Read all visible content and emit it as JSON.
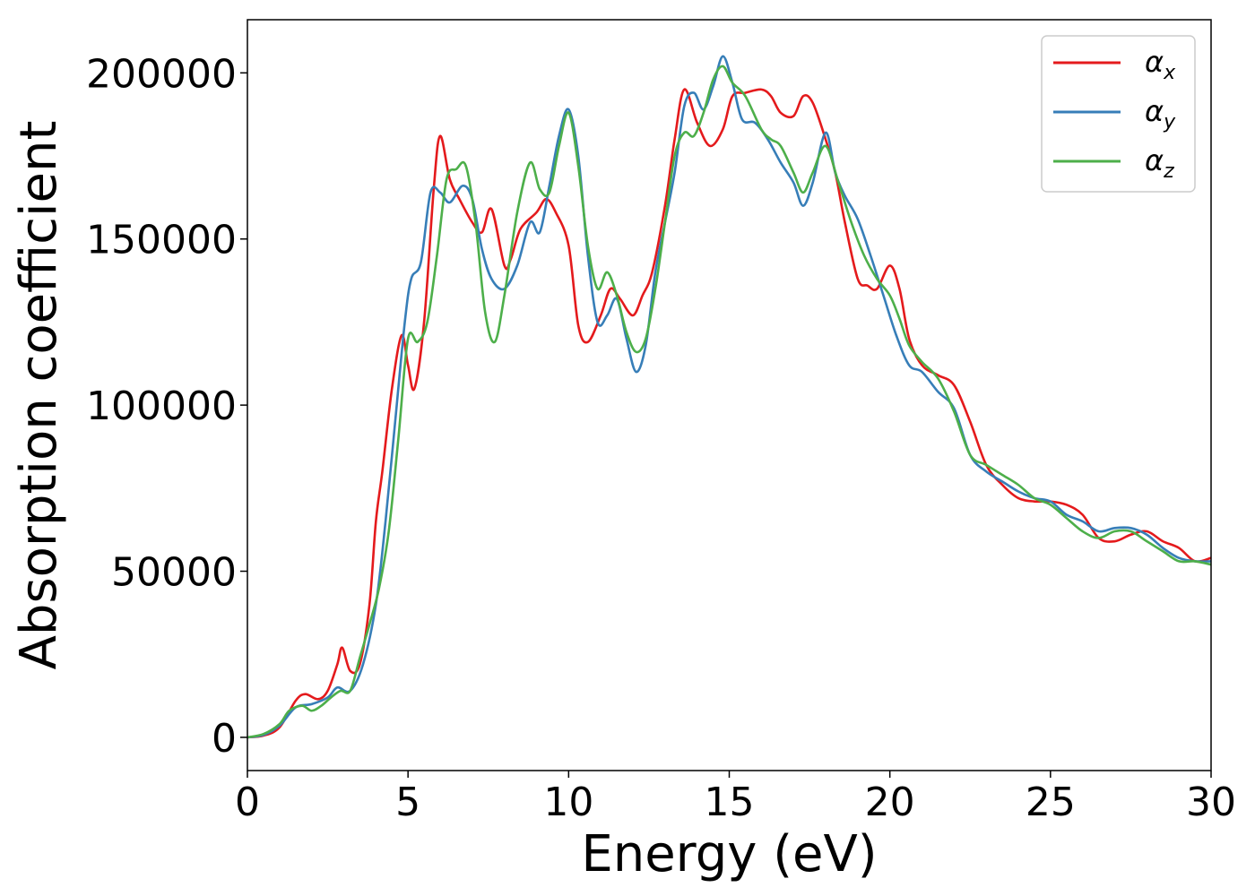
{
  "chart_data": {
    "type": "line",
    "xlabel": "Energy (eV)",
    "ylabel": "Absorption coefficient",
    "xlim": [
      0,
      30
    ],
    "ylim": [
      -10000,
      216000
    ],
    "xticks": [
      0,
      5,
      10,
      15,
      20,
      25,
      30
    ],
    "xtick_labels": [
      "0",
      "5",
      "10",
      "15",
      "20",
      "25",
      "30"
    ],
    "yticks": [
      0,
      50000,
      100000,
      150000,
      200000
    ],
    "ytick_labels": [
      "0",
      "50000",
      "100000",
      "150000",
      "200000"
    ],
    "grid": false,
    "legend_position": "top-right",
    "series": [
      {
        "name": "α",
        "subscript": "x",
        "color": "#e41a1c",
        "x": [
          0,
          0.5,
          1.0,
          1.5,
          1.8,
          2.2,
          2.5,
          2.8,
          2.95,
          3.2,
          3.5,
          3.8,
          4.0,
          4.2,
          4.5,
          4.8,
          5.0,
          5.2,
          5.5,
          5.8,
          6.0,
          6.3,
          6.6,
          7.0,
          7.3,
          7.6,
          8.0,
          8.2,
          8.5,
          9.0,
          9.3,
          9.6,
          10.0,
          10.3,
          10.6,
          11.0,
          11.3,
          11.6,
          12.0,
          12.3,
          12.6,
          13.0,
          13.3,
          13.6,
          14.0,
          14.4,
          14.8,
          15.1,
          15.5,
          16.0,
          16.3,
          16.6,
          17.0,
          17.3,
          17.6,
          18.0,
          18.3,
          18.6,
          19.0,
          19.3,
          19.6,
          20.0,
          20.3,
          20.6,
          21.0,
          21.5,
          22.0,
          22.5,
          23.0,
          23.5,
          24.0,
          24.5,
          25.0,
          25.5,
          26.0,
          26.5,
          27.0,
          27.5,
          28.0,
          28.5,
          29.0,
          29.5,
          30.0
        ],
        "values": [
          0,
          500,
          3000,
          11000,
          13000,
          11500,
          14000,
          22000,
          27000,
          20000,
          22000,
          40000,
          65000,
          80000,
          105000,
          121000,
          112000,
          105000,
          125000,
          165000,
          181000,
          168000,
          162000,
          155000,
          152000,
          159000,
          142000,
          144000,
          153000,
          158000,
          162000,
          158000,
          148000,
          124000,
          119000,
          127000,
          135000,
          132000,
          127000,
          133000,
          140000,
          160000,
          180000,
          195000,
          185000,
          178000,
          183000,
          193000,
          194000,
          195000,
          193000,
          188000,
          187000,
          193000,
          191000,
          180000,
          170000,
          155000,
          138000,
          136000,
          135000,
          142000,
          135000,
          120000,
          112000,
          109000,
          106000,
          95000,
          82000,
          76000,
          72000,
          71000,
          71000,
          70000,
          67000,
          60000,
          59000,
          61000,
          62000,
          59000,
          57000,
          53000,
          54000
        ]
      },
      {
        "name": "α",
        "subscript": "y",
        "color": "#377eb8",
        "x": [
          0,
          0.5,
          1.0,
          1.5,
          2.0,
          2.5,
          2.8,
          3.2,
          3.6,
          4.0,
          4.3,
          4.6,
          4.9,
          5.1,
          5.4,
          5.7,
          6.0,
          6.3,
          6.7,
          7.0,
          7.3,
          7.6,
          8.0,
          8.4,
          8.8,
          9.1,
          9.4,
          9.7,
          10.0,
          10.3,
          10.6,
          10.9,
          11.2,
          11.5,
          11.8,
          12.1,
          12.4,
          12.7,
          13.0,
          13.3,
          13.6,
          13.9,
          14.2,
          14.5,
          14.8,
          15.1,
          15.4,
          15.8,
          16.2,
          16.6,
          17.0,
          17.3,
          17.6,
          18.0,
          18.3,
          18.6,
          19.0,
          19.4,
          19.8,
          20.2,
          20.6,
          21.0,
          21.5,
          22.0,
          22.5,
          23.0,
          23.5,
          24.0,
          24.5,
          25.0,
          25.5,
          26.0,
          26.5,
          27.0,
          27.5,
          28.0,
          28.5,
          29.0,
          29.5,
          30.0
        ],
        "values": [
          0,
          700,
          3500,
          9000,
          10000,
          12000,
          15000,
          14000,
          22000,
          40000,
          65000,
          95000,
          125000,
          138000,
          143000,
          164000,
          164000,
          161000,
          166000,
          162000,
          147000,
          138000,
          135000,
          142000,
          155000,
          152000,
          166000,
          181000,
          189000,
          175000,
          145000,
          125000,
          127000,
          132000,
          120000,
          110000,
          118000,
          140000,
          155000,
          170000,
          190000,
          194000,
          189000,
          196000,
          205000,
          197000,
          186000,
          185000,
          180000,
          173000,
          167000,
          160000,
          167000,
          182000,
          170000,
          163000,
          156000,
          145000,
          133000,
          121000,
          112000,
          110000,
          104000,
          99000,
          85000,
          80000,
          77000,
          74000,
          72000,
          71000,
          67000,
          65000,
          62000,
          63000,
          63000,
          61000,
          57000,
          54000,
          53000,
          53000
        ]
      },
      {
        "name": "α",
        "subscript": "z",
        "color": "#4daf4a",
        "x": [
          0,
          0.5,
          1.0,
          1.3,
          1.7,
          2.0,
          2.3,
          2.6,
          2.9,
          3.2,
          3.5,
          3.8,
          4.1,
          4.4,
          4.7,
          5.0,
          5.3,
          5.6,
          5.9,
          6.2,
          6.5,
          6.8,
          7.1,
          7.4,
          7.7,
          8.0,
          8.4,
          8.8,
          9.1,
          9.4,
          9.7,
          10.0,
          10.3,
          10.6,
          10.9,
          11.2,
          11.5,
          11.8,
          12.1,
          12.4,
          12.7,
          13.0,
          13.3,
          13.6,
          13.9,
          14.2,
          14.5,
          14.8,
          15.1,
          15.5,
          16.0,
          16.3,
          16.6,
          17.0,
          17.3,
          17.6,
          18.0,
          18.4,
          18.8,
          19.2,
          19.6,
          20.0,
          20.3,
          20.6,
          21.0,
          21.5,
          22.0,
          22.5,
          23.0,
          23.5,
          24.0,
          24.5,
          25.0,
          25.5,
          26.0,
          26.5,
          27.0,
          27.5,
          28.0,
          28.5,
          29.0,
          29.5,
          30.0
        ],
        "values": [
          0,
          1000,
          4000,
          8000,
          9500,
          8000,
          9500,
          12000,
          14000,
          14000,
          24000,
          34000,
          45000,
          62000,
          90000,
          120000,
          119000,
          125000,
          145000,
          168000,
          171000,
          172000,
          155000,
          128000,
          119000,
          133000,
          158000,
          173000,
          165000,
          164000,
          178000,
          188000,
          172000,
          148000,
          135000,
          140000,
          133000,
          122000,
          116000,
          120000,
          135000,
          155000,
          175000,
          182000,
          181000,
          188000,
          198000,
          202000,
          197000,
          193000,
          183000,
          180000,
          178000,
          170000,
          164000,
          170000,
          178000,
          167000,
          155000,
          145000,
          138000,
          133000,
          126000,
          118000,
          113000,
          108000,
          98000,
          85000,
          82000,
          79000,
          76000,
          72000,
          70000,
          66000,
          62000,
          60000,
          62000,
          62000,
          59000,
          56000,
          53000,
          53000,
          52000
        ]
      }
    ]
  }
}
